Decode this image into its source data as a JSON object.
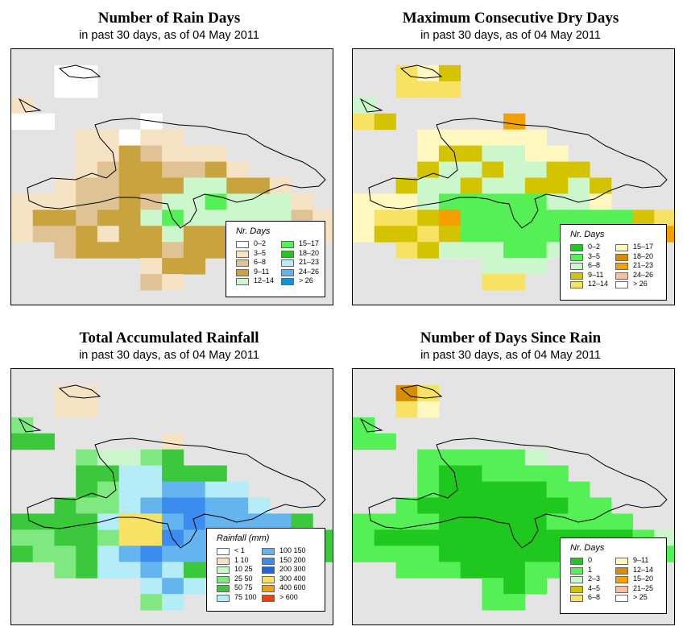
{
  "panels": [
    {
      "title": "Number of Rain Days",
      "subtitle": "in past 30 days, as of  04 May 2011",
      "legend_title": "Nr. Days",
      "legend": [
        {
          "label": "0–2",
          "color": "#ffffff"
        },
        {
          "label": "3–5",
          "color": "#f5e3c4"
        },
        {
          "label": "6–8",
          "color": "#dfc394"
        },
        {
          "label": "9–11",
          "color": "#c9a33e"
        },
        {
          "label": "12–14",
          "color": "#ccf7cc"
        },
        {
          "label": "15–17",
          "color": "#55f055"
        },
        {
          "label": "18–20",
          "color": "#1ec81e"
        },
        {
          "label": "21–23",
          "color": "#b4ecf8"
        },
        {
          "label": "24–26",
          "color": "#5ab4f0"
        },
        {
          "label": "> 26",
          "color": "#0a96dc"
        }
      ]
    },
    {
      "title": "Maximum Consecutive Dry Days",
      "subtitle": "in past 30 days, as of  04 May 2011",
      "legend_title": "Nr. Days",
      "legend": [
        {
          "label": "0–2",
          "color": "#1ec81e"
        },
        {
          "label": "3–5",
          "color": "#55f055"
        },
        {
          "label": "6–8",
          "color": "#ccf7cc"
        },
        {
          "label": "9–11",
          "color": "#d4c400"
        },
        {
          "label": "12–14",
          "color": "#f8e264"
        },
        {
          "label": "15–17",
          "color": "#fff8c0"
        },
        {
          "label": "18–20",
          "color": "#d88c00"
        },
        {
          "label": "21–23",
          "color": "#f4a000"
        },
        {
          "label": "24–26",
          "color": "#f8c0a0"
        },
        {
          "label": "> 26",
          "color": "#ffffff"
        }
      ]
    },
    {
      "title": "Total Accumulated Rainfall",
      "subtitle": "in past 30 days, as of  04 May 2011",
      "legend_title": "Rainfall (mm)",
      "legend": [
        {
          "label": "< 1",
          "color": "#ffffff"
        },
        {
          "label": "1   10",
          "color": "#f5e3c4"
        },
        {
          "label": "10   25",
          "color": "#ccf7cc"
        },
        {
          "label": "25   50",
          "color": "#80e880"
        },
        {
          "label": "50   75",
          "color": "#3cc83c"
        },
        {
          "label": "75   100",
          "color": "#b4ecf8"
        },
        {
          "label": "100   150",
          "color": "#64b4f0"
        },
        {
          "label": "150   200",
          "color": "#3c8cf0"
        },
        {
          "label": "200   300",
          "color": "#1e64dc"
        },
        {
          "label": "300   400",
          "color": "#f8e264"
        },
        {
          "label": "400   600",
          "color": "#f4a000"
        },
        {
          "label": "> 600",
          "color": "#ff3c00"
        }
      ]
    },
    {
      "title": "Number of Days Since Rain",
      "subtitle": "in past 30 days, as of  04 May 2011",
      "legend_title": "Nr. Days",
      "legend": [
        {
          "label": "0",
          "color": "#1ec81e"
        },
        {
          "label": "1",
          "color": "#55f055"
        },
        {
          "label": "2–3",
          "color": "#ccf7cc"
        },
        {
          "label": "4–5",
          "color": "#d4c400"
        },
        {
          "label": "6–8",
          "color": "#f8e264"
        },
        {
          "label": "9–11",
          "color": "#fff8c0"
        },
        {
          "label": "12–14",
          "color": "#d88c00"
        },
        {
          "label": "15–20",
          "color": "#f4a000"
        },
        {
          "label": "21–25",
          "color": "#f8c0a0"
        },
        {
          "label": "> 25",
          "color": "#ffffff"
        }
      ]
    }
  ],
  "grids": [
    [
      "...............",
      "..AA...........",
      "..AA...........",
      "B..............",
      "AA....A........",
      "...BBABB.......",
      "...BBDCBBB.....",
      "...BCDDCCDB....",
      "..BCCDDDEEDDB..",
      "BBBCCDCEEFEEEB.",
      "BDDCDDEFEEEEECB",
      "BCCDBDDEDDDDDCB",
      "..CDDDDCDDDD...",
      "......BDD......",
      "......CB.......",
      "..............."
    ],
    [
      "...............",
      "..EFD..........",
      "..EEE..........",
      "C..............",
      "ED.....I.......",
      "...FFFFFF......",
      "...FDDCCFF.....",
      "...DCCDCCDD....",
      "..DCCDCCDDCD...",
      "FFFCBBBBBCCF...",
      "FEEDIBBBBBBBBDE",
      "FDDEDBBBBBBBCDI",
      "..EDCCCBBCCE...",
      "......CCC......",
      "......EE.......",
      "..............."
    ],
    [
      "...............",
      "..AA...........",
      "..AA...........",
      "E..............",
      "DD.....A.......",
      "...CBBCD.......",
      "...DDFFDDD.....",
      "...DEFFGGFF....",
      "..DEEFGHHGGF...",
      "DDDDFJJGHGGGGD.",
      "EEDDEJJHGGGGGDD",
      "DEEDFGHGGGDDDDD",
      "..EDFFGFDDDD...",
      "......FGF......",
      "......EF.......",
      "..............."
    ],
    [
      "...............",
      "..GI...........",
      "..IE...........",
      "B..............",
      "BB.............",
      "...BBBBBC......",
      "...BAABBBB.....",
      "...BAAAAABB....",
      "..BAAAAAAABB...",
      "BBBBAAAAABBBB..",
      "BAAAAAAAAAAAABC",
      "BBBBAAAAAABBBBB",
      "..BBBAAABBBB...",
      "......BAB......",
      "......BB.......",
      "..............."
    ]
  ],
  "grid_palettes": [
    {
      "A": "#ffffff",
      "B": "#f5e3c4",
      "C": "#dfc394",
      "D": "#c9a33e",
      "E": "#ccf7cc",
      "F": "#55f055"
    },
    {
      "B": "#55f055",
      "C": "#ccf7cc",
      "D": "#d4c400",
      "E": "#f8e264",
      "F": "#fff8c0",
      "I": "#f4a000"
    },
    {
      "A": "#f5e3c4",
      "B": "#ccf7cc",
      "C": "#80e880",
      "D": "#3cc83c",
      "E": "#80e880",
      "F": "#b4ecf8",
      "G": "#64b4f0",
      "H": "#3c8cf0",
      "J": "#f8e264"
    },
    {
      "A": "#1ec81e",
      "B": "#55f055",
      "C": "#ccf7cc",
      "E": "#fff8c0",
      "G": "#d88c00",
      "I": "#f8e264"
    }
  ]
}
